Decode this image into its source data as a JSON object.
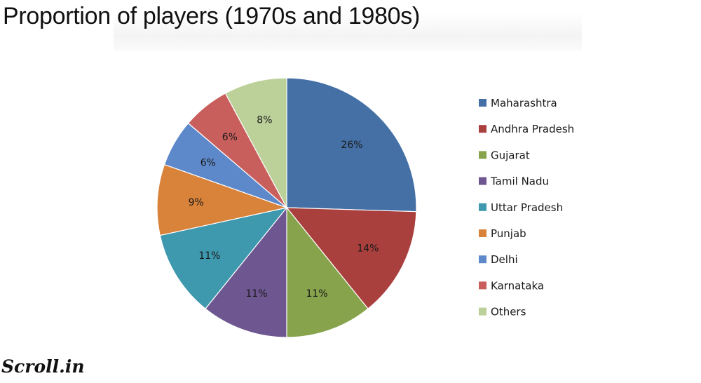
{
  "chart_data": {
    "type": "pie",
    "title": "Proportion of players (1970s and 1980s)",
    "categories": [
      "Maharashtra",
      "Andhra Pradesh",
      "Gujarat",
      "Tamil Nadu",
      "Uttar Pradesh",
      "Punjab",
      "Delhi",
      "Karnataka",
      "Others"
    ],
    "values": [
      26,
      14,
      11,
      11,
      11,
      9,
      6,
      6,
      8
    ],
    "value_labels": [
      "26%",
      "14%",
      "11%",
      "11%",
      "11%",
      "9%",
      "6%",
      "6%",
      "8%"
    ],
    "colors": [
      "#4470A5",
      "#A9403D",
      "#87A34B",
      "#6E5690",
      "#3E98AE",
      "#D8823A",
      "#5D88C9",
      "#C85F5C",
      "#BCD19A"
    ],
    "legend_position": "right"
  },
  "brand": "Scroll.in"
}
